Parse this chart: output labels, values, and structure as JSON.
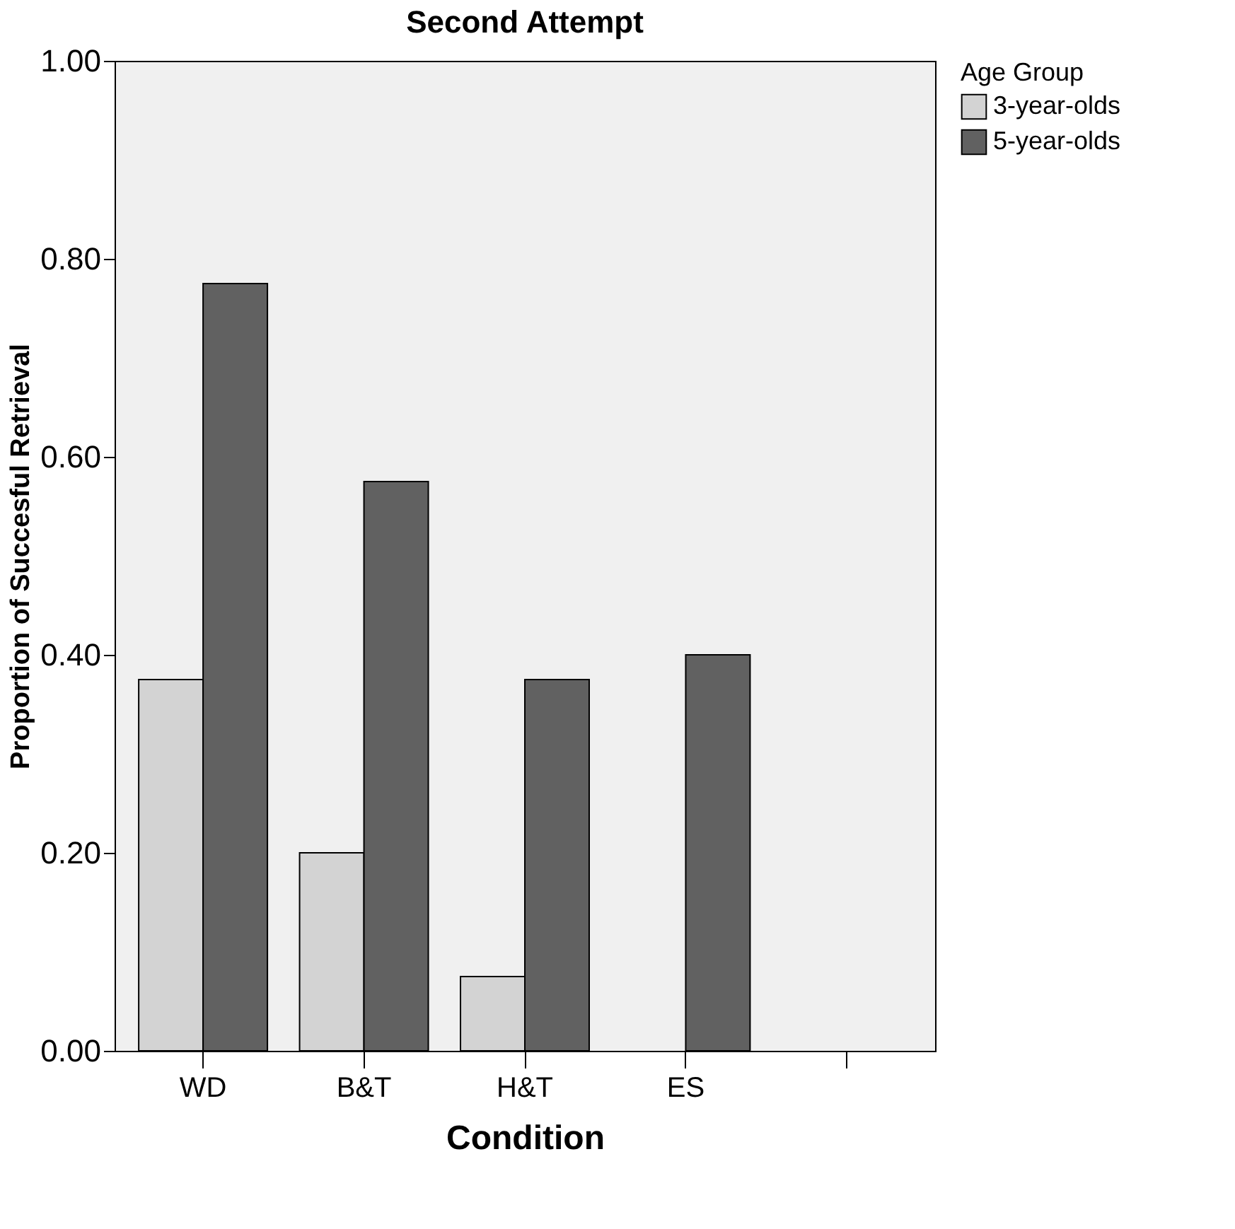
{
  "chart_data": {
    "type": "bar",
    "title": "Second Attempt",
    "xlabel": "Condition",
    "ylabel": "Proportion of Succesful Retrieval",
    "legend_title": "Age Group",
    "categories": [
      "WD",
      "B&T",
      "H&T",
      "ES",
      null
    ],
    "series": [
      {
        "name": "3-year-olds",
        "color": "#d3d3d3",
        "values": [
          0.375,
          0.2,
          0.075,
          0,
          null
        ]
      },
      {
        "name": "5-year-olds",
        "color": "#616161",
        "values": [
          0.775,
          0.575,
          0.375,
          0.4,
          null
        ]
      }
    ],
    "ylim": [
      0,
      1
    ],
    "yticks": [
      {
        "value": 0,
        "label": "0.00"
      },
      {
        "value": 0.2,
        "label": "0.20"
      },
      {
        "value": 0.4,
        "label": "0.40"
      },
      {
        "value": 0.6,
        "label": "0.60"
      },
      {
        "value": 0.8,
        "label": "0.80"
      },
      {
        "value": 1,
        "label": "1.00"
      }
    ],
    "grid": false,
    "legend": "top right"
  }
}
